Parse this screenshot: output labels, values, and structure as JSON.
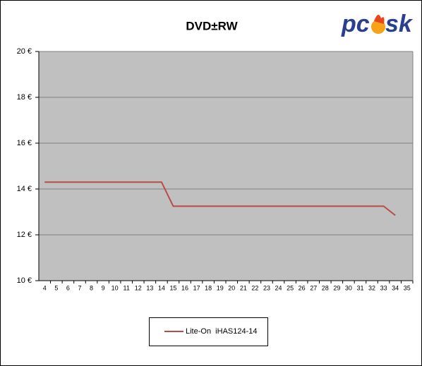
{
  "chart_data": {
    "type": "line",
    "title": "DVD±RW",
    "logo": [
      "pc",
      "sk"
    ],
    "categories": [
      "4",
      "5",
      "6",
      "7",
      "8",
      "9",
      "10",
      "11",
      "12",
      "13",
      "14",
      "15",
      "16",
      "17",
      "18",
      "19",
      "20",
      "21",
      "22",
      "23",
      "24",
      "25",
      "26",
      "27",
      "28",
      "29",
      "30",
      "31",
      "32",
      "33",
      "34",
      "35"
    ],
    "series": [
      {
        "name": "Lite-On  iHAS124-14",
        "color": "#b94a48",
        "values": [
          14.3,
          14.3,
          14.3,
          14.3,
          14.3,
          14.3,
          14.3,
          14.3,
          14.3,
          14.3,
          14.3,
          13.25,
          13.25,
          13.25,
          13.25,
          13.25,
          13.25,
          13.25,
          13.25,
          13.25,
          13.25,
          13.25,
          13.25,
          13.25,
          13.25,
          13.25,
          13.25,
          13.25,
          13.25,
          13.25,
          12.85,
          null
        ]
      }
    ],
    "ylim": [
      10,
      20
    ],
    "yticks": [
      {
        "value": 10,
        "label": "10 €"
      },
      {
        "value": 12,
        "label": "12 €"
      },
      {
        "value": 14,
        "label": "14 €"
      },
      {
        "value": 16,
        "label": "16 €"
      },
      {
        "value": 18,
        "label": "18 €"
      },
      {
        "value": 20,
        "label": "20 €"
      }
    ],
    "grid": true,
    "plot_color": "#c0c0c0"
  }
}
